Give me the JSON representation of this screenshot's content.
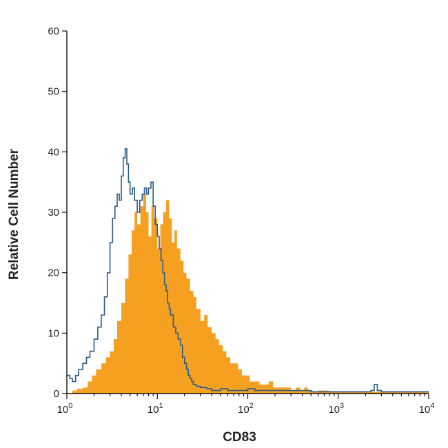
{
  "chart_data": {
    "type": "area",
    "title": "",
    "xlabel": "CD83",
    "ylabel": "Relative Cell Number",
    "xscale": "log",
    "xlim": [
      1,
      10000
    ],
    "ylim": [
      0,
      60
    ],
    "grid": false,
    "legend": "none",
    "x_ticks": [
      {
        "value": 1,
        "base": "10",
        "exp": "0"
      },
      {
        "value": 10,
        "base": "10",
        "exp": "1"
      },
      {
        "value": 100,
        "base": "10",
        "exp": "2"
      },
      {
        "value": 1000,
        "base": "10",
        "exp": "3"
      },
      {
        "value": 10000,
        "base": "10",
        "exp": "4"
      }
    ],
    "y_ticks": [
      "0",
      "10",
      "20",
      "30",
      "40",
      "50",
      "60"
    ],
    "series": [
      {
        "style": "filled",
        "color": "#f5a020",
        "x": [
          1,
          1.15,
          1.3,
          1.5,
          1.7,
          1.9,
          2.1,
          2.4,
          2.7,
          3.0,
          3.3,
          3.6,
          4.0,
          4.4,
          4.8,
          5.2,
          5.6,
          6.0,
          6.5,
          7.0,
          7.5,
          8.0,
          8.6,
          9.2,
          10,
          10.8,
          11.6,
          12.5,
          13.5,
          14.5,
          15.5,
          16.5,
          18,
          19.5,
          21,
          23,
          25,
          27,
          30,
          33,
          36,
          40,
          44,
          48,
          53,
          58,
          64,
          70,
          78,
          86,
          95,
          105,
          120,
          135,
          150,
          170,
          190,
          215,
          240,
          270,
          300,
          340,
          380,
          420,
          460,
          520,
          600,
          800,
          1000,
          1500,
          2000,
          3000,
          5000,
          10000
        ],
        "values": [
          0,
          0.5,
          0.8,
          1,
          2,
          3,
          4,
          5,
          6,
          7,
          9,
          12,
          15,
          19,
          23,
          27,
          30,
          28,
          31,
          33,
          30,
          26,
          31,
          29,
          24,
          28,
          30,
          32,
          29,
          25,
          27,
          24,
          22,
          20,
          19,
          17,
          16,
          14,
          12,
          13,
          11,
          10,
          9,
          8,
          7,
          6,
          5,
          5,
          4,
          3,
          3,
          2,
          2,
          1.5,
          1.5,
          2,
          1,
          1,
          1,
          1,
          0.5,
          1,
          0.5,
          1,
          0.5,
          0.3,
          0.5,
          0.3,
          0.3,
          0.3,
          0.3,
          0.3,
          0.3,
          0
        ]
      },
      {
        "style": "outline",
        "color": "#2a5b85",
        "x": [
          1,
          1.08,
          1.15,
          1.25,
          1.35,
          1.5,
          1.65,
          1.8,
          2.0,
          2.2,
          2.4,
          2.6,
          2.8,
          3.0,
          3.2,
          3.4,
          3.6,
          3.8,
          4.0,
          4.2,
          4.4,
          4.6,
          4.8,
          5.0,
          5.3,
          5.6,
          6.0,
          6.4,
          6.8,
          7.2,
          7.6,
          8.0,
          8.5,
          9.0,
          9.5,
          10,
          10.5,
          11,
          11.5,
          12,
          12.5,
          13,
          13.5,
          14,
          15,
          16,
          17,
          18,
          19,
          20,
          21,
          22,
          23,
          24,
          25,
          27,
          30,
          35,
          40,
          50,
          60,
          80,
          100,
          120,
          140,
          170,
          200,
          300,
          500,
          1000,
          2000,
          2300,
          2500,
          2700,
          3000,
          5000,
          10000
        ],
        "values": [
          3,
          2.5,
          2,
          3,
          4,
          5,
          6,
          7,
          9,
          11,
          13,
          16,
          20,
          25,
          29,
          31,
          33,
          32,
          36,
          39,
          40.5,
          38,
          35,
          33,
          34,
          32,
          30,
          32,
          33,
          34,
          33,
          34,
          35,
          31,
          28,
          26,
          24,
          22,
          20,
          18,
          17,
          15,
          14,
          13,
          11,
          10,
          9,
          8,
          6,
          5,
          4,
          3,
          2.5,
          2,
          1.5,
          1.2,
          1,
          0.8,
          0.5,
          0.8,
          0.5,
          0.5,
          0.8,
          0.5,
          0.5,
          0.5,
          0.5,
          0.5,
          0.3,
          0.3,
          0.3,
          0.5,
          1.5,
          0.5,
          0.3,
          0.3,
          0.3
        ]
      }
    ]
  }
}
